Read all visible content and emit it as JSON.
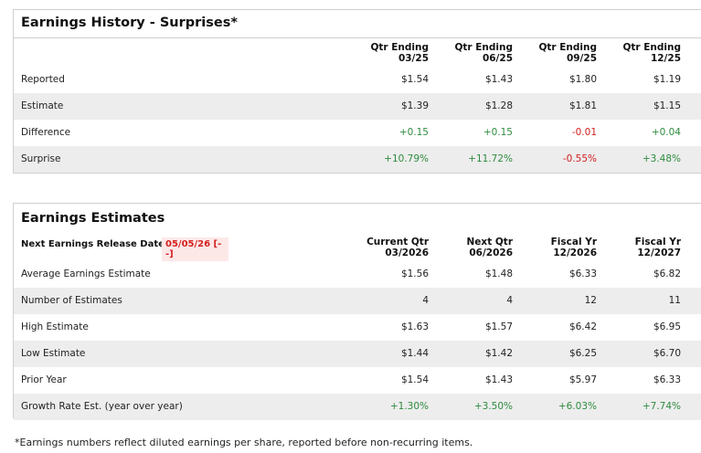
{
  "history": {
    "title": "Earnings History - Surprises*",
    "columns": [
      {
        "line1": "Qtr Ending",
        "line2": "03/25"
      },
      {
        "line1": "Qtr Ending",
        "line2": "06/25"
      },
      {
        "line1": "Qtr Ending",
        "line2": "09/25"
      },
      {
        "line1": "Qtr Ending",
        "line2": "12/25"
      }
    ],
    "rows": [
      {
        "label": "Reported",
        "values": [
          "$1.54",
          "$1.43",
          "$1.80",
          "$1.19"
        ]
      },
      {
        "label": "Estimate",
        "values": [
          "$1.39",
          "$1.28",
          "$1.81",
          "$1.15"
        ]
      },
      {
        "label": "Difference",
        "values": [
          "+0.15",
          "+0.15",
          "-0.01",
          "+0.04"
        ]
      },
      {
        "label": "Surprise",
        "values": [
          "+10.79%",
          "+11.72%",
          "-0.55%",
          "+3.48%"
        ]
      }
    ]
  },
  "estimates": {
    "title": "Earnings Estimates",
    "next_release_label": "Next Earnings Release Date -",
    "next_release_date": "05/05/26 [--]",
    "columns": [
      {
        "line1": "Current Qtr",
        "line2": "03/2026"
      },
      {
        "line1": "Next Qtr",
        "line2": "06/2026"
      },
      {
        "line1": "Fiscal Yr",
        "line2": "12/2026"
      },
      {
        "line1": "Fiscal Yr",
        "line2": "12/2027"
      }
    ],
    "rows": [
      {
        "label": "Average Earnings Estimate",
        "values": [
          "$1.56",
          "$1.48",
          "$6.33",
          "$6.82"
        ]
      },
      {
        "label": "Number of Estimates",
        "values": [
          "4",
          "4",
          "12",
          "11"
        ]
      },
      {
        "label": "High Estimate",
        "values": [
          "$1.63",
          "$1.57",
          "$6.42",
          "$6.95"
        ]
      },
      {
        "label": "Low Estimate",
        "values": [
          "$1.44",
          "$1.42",
          "$6.25",
          "$6.70"
        ]
      },
      {
        "label": "Prior Year",
        "values": [
          "$1.54",
          "$1.43",
          "$5.97",
          "$6.33"
        ]
      },
      {
        "label": "Growth Rate Est. (year over year)",
        "values": [
          "+1.30%",
          "+3.50%",
          "+6.03%",
          "+7.74%"
        ]
      }
    ]
  },
  "footnote": "*Earnings numbers reflect diluted earnings per share, reported before non-recurring items.",
  "colors": {
    "positive": "#2e8b3e",
    "negative": "#d32020",
    "row_shade": "#ededed",
    "border": "#cfcfcf"
  }
}
